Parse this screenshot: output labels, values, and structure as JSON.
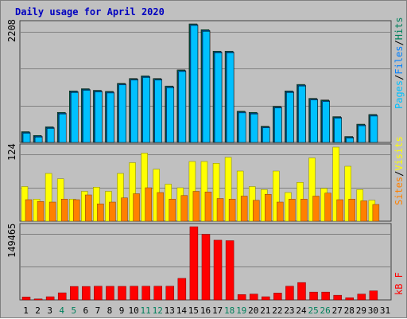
{
  "title": "Daily usage for April 2020",
  "colors": {
    "pages": "#00c0ff",
    "files": "#0080ff",
    "hits": "#00805c",
    "sites": "#ff8000",
    "visits": "#ffff00",
    "kbytes": "#ff0000",
    "weekend_day": "#00805c",
    "weekday": "#000000",
    "title": "#0000c0",
    "background": "#c0c0c0"
  },
  "legend": {
    "top": {
      "pages": "Pages",
      "sep1": "/",
      "files": "Files",
      "sep2": "/",
      "hits": "Hits"
    },
    "middle": {
      "sites": "Sites",
      "sep1": "/",
      "visits": "Visits"
    },
    "bottom": {
      "kbytes": "kB F"
    }
  },
  "chart_data": [
    {
      "type": "bar",
      "title": "Daily usage for April 2020",
      "categories": [
        "1",
        "2",
        "3",
        "4",
        "5",
        "6",
        "7",
        "8",
        "9",
        "10",
        "11",
        "12",
        "13",
        "14",
        "15",
        "16",
        "17",
        "18",
        "19",
        "20",
        "21",
        "22",
        "23",
        "24",
        "25",
        "26",
        "27",
        "28",
        "29",
        "30",
        "31"
      ],
      "ylabel": "Pages / Files / Hits",
      "y_max_label": "2208",
      "ylim": [
        0,
        2208
      ],
      "series": [
        {
          "name": "Hits",
          "values": [
            200,
            130,
            290,
            560,
            960,
            1000,
            970,
            950,
            1100,
            1190,
            1240,
            1190,
            1050,
            1350,
            2208,
            2100,
            1700,
            1700,
            580,
            560,
            300,
            670,
            960,
            1080,
            820,
            790,
            480,
            110,
            340,
            520,
            null
          ]
        },
        {
          "name": "Files",
          "values": [
            200,
            130,
            290,
            560,
            960,
            1000,
            970,
            950,
            1100,
            1190,
            1240,
            1190,
            1050,
            1350,
            2208,
            2100,
            1700,
            1700,
            580,
            560,
            300,
            670,
            960,
            1080,
            820,
            790,
            480,
            110,
            340,
            520,
            null
          ]
        },
        {
          "name": "Pages",
          "values": [
            200,
            130,
            290,
            560,
            960,
            1000,
            970,
            950,
            1100,
            1190,
            1240,
            1190,
            1050,
            1350,
            2208,
            2100,
            1700,
            1700,
            580,
            560,
            300,
            670,
            960,
            1080,
            820,
            790,
            480,
            110,
            340,
            520,
            null
          ]
        }
      ]
    },
    {
      "type": "bar",
      "categories": [
        "1",
        "2",
        "3",
        "4",
        "5",
        "6",
        "7",
        "8",
        "9",
        "10",
        "11",
        "12",
        "13",
        "14",
        "15",
        "16",
        "17",
        "18",
        "19",
        "20",
        "21",
        "22",
        "23",
        "24",
        "25",
        "26",
        "27",
        "28",
        "29",
        "30",
        "31"
      ],
      "ylabel": "Sites / Visits",
      "y_max_label": "124",
      "ylim": [
        0,
        124
      ],
      "series": [
        {
          "name": "Visits",
          "values": [
            58,
            37,
            80,
            71,
            37,
            50,
            57,
            50,
            80,
            98,
            114,
            87,
            62,
            56,
            100,
            100,
            97,
            107,
            84,
            58,
            53,
            84,
            48,
            65,
            106,
            55,
            124,
            92,
            53,
            35,
            null
          ]
        },
        {
          "name": "Sites",
          "values": [
            36,
            33,
            32,
            37,
            36,
            44,
            29,
            32,
            39,
            46,
            56,
            48,
            37,
            43,
            50,
            49,
            38,
            37,
            42,
            35,
            45,
            32,
            37,
            37,
            42,
            47,
            36,
            37,
            34,
            28,
            null
          ]
        }
      ]
    },
    {
      "type": "bar",
      "categories": [
        "1",
        "2",
        "3",
        "4",
        "5",
        "6",
        "7",
        "8",
        "9",
        "10",
        "11",
        "12",
        "13",
        "14",
        "15",
        "16",
        "17",
        "18",
        "19",
        "20",
        "21",
        "22",
        "23",
        "24",
        "25",
        "26",
        "27",
        "28",
        "29",
        "30",
        "31"
      ],
      "ylabel": "kB F",
      "y_max_label": "149465",
      "ylim": [
        0,
        149465
      ],
      "series": [
        {
          "name": "kB F",
          "values": [
            6000,
            2000,
            6500,
            14500,
            27500,
            27500,
            28000,
            27800,
            27700,
            28000,
            28000,
            28000,
            28000,
            44000,
            149465,
            134000,
            122000,
            121000,
            11000,
            12000,
            6500,
            14000,
            28000,
            35500,
            16000,
            16000,
            9500,
            4500,
            12000,
            18500,
            null
          ]
        }
      ]
    }
  ],
  "weekend_days": [
    4,
    5,
    11,
    12,
    18,
    19,
    25,
    26
  ]
}
